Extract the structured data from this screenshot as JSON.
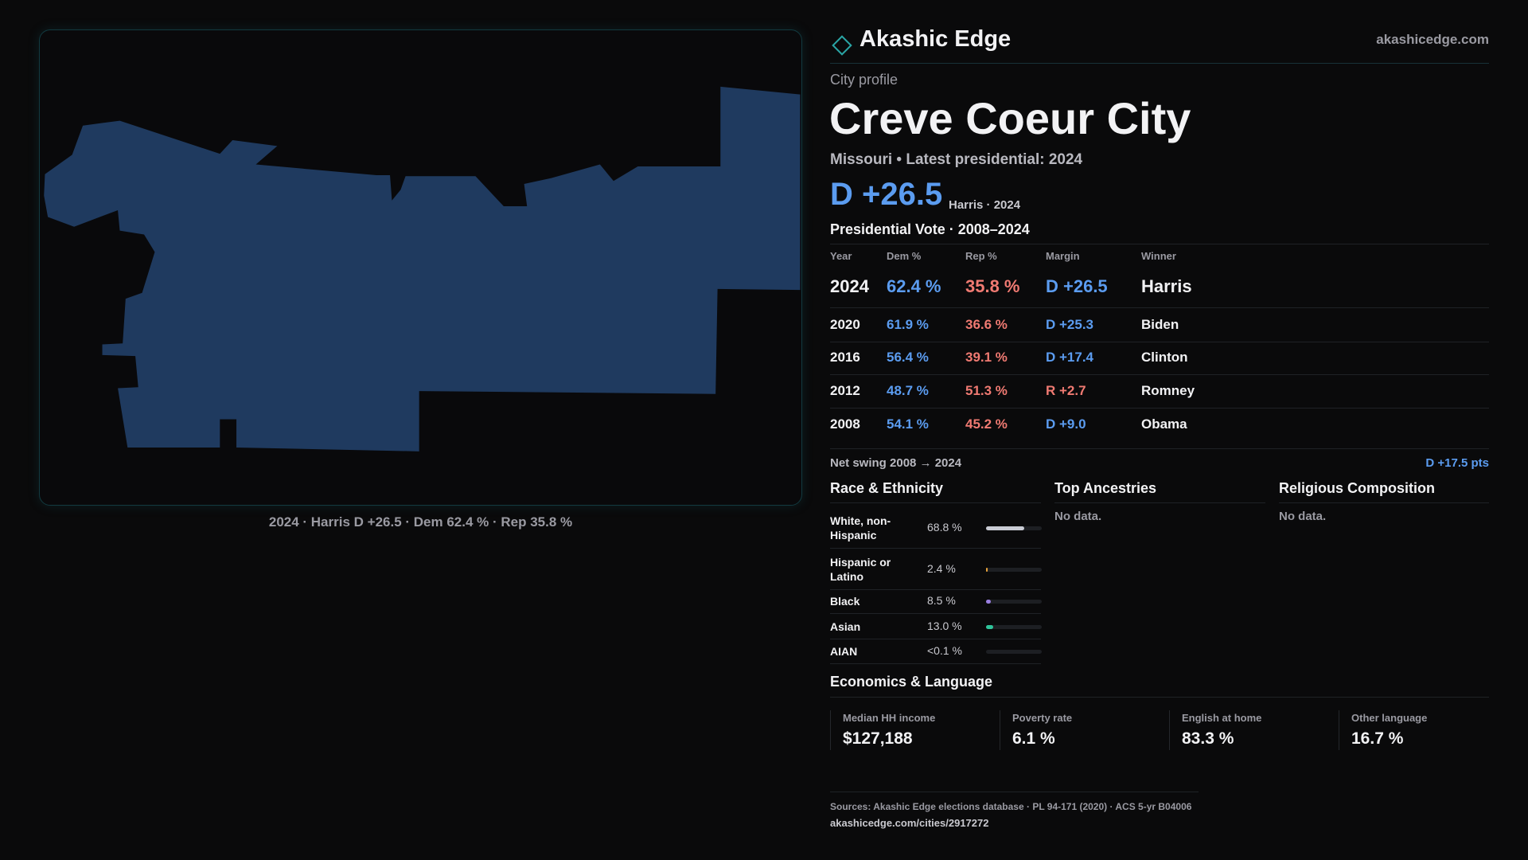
{
  "header": {
    "brand": "Akashic Edge",
    "domain": "akashicedge.com"
  },
  "map": {
    "caption": "2024 · Harris D +26.5 · Dem 62.4 % · Rep 35.8 %"
  },
  "profile": {
    "kicker": "City profile",
    "title": "Creve Coeur City",
    "subtitle": "Missouri • Latest presidential: 2024",
    "margin": "D +26.5",
    "margin_note": "Harris · 2024"
  },
  "vote_table": {
    "title": "Presidential Vote · 2008–2024",
    "columns": [
      "Year",
      "Dem %",
      "Rep %",
      "Margin",
      "Winner"
    ],
    "rows": [
      [
        "2024",
        "62.4 %",
        "35.8 %",
        "D +26.5",
        "Harris"
      ],
      [
        "2020",
        "61.9 %",
        "36.6 %",
        "D +25.3",
        "Biden"
      ],
      [
        "2016",
        "56.4 %",
        "39.1 %",
        "D +17.4",
        "Clinton"
      ],
      [
        "2012",
        "48.7 %",
        "51.3 %",
        "R +2.7",
        "Romney"
      ],
      [
        "2008",
        "54.1 %",
        "45.2 %",
        "D +9.0",
        "Obama"
      ]
    ]
  },
  "net_swing": {
    "label": "Net swing 2008 → 2024",
    "value": "D +17.5 pts"
  },
  "race": {
    "title": "Race & Ethnicity",
    "rows": [
      {
        "name": "White, non-Hispanic",
        "share": {
          "value": 68.8,
          "label": "68.8 %"
        },
        "color": "#c9ccd4"
      },
      {
        "name": "Hispanic or Latino",
        "share": {
          "value": 2.4,
          "label": "2.4 %"
        },
        "color": "#e8a33a"
      },
      {
        "name": "Black",
        "share": {
          "value": 8.5,
          "label": "8.5 %"
        },
        "color": "#9a7fe0"
      },
      {
        "name": "Asian",
        "share": {
          "value": 13.0,
          "label": "13.0 %"
        },
        "color": "#2fc49a"
      },
      {
        "name": "AIAN",
        "share": {
          "label": "<0.1 %"
        }
      }
    ]
  },
  "ancestries": {
    "title": "Top Ancestries",
    "empty": "No data."
  },
  "religion": {
    "title": "Religious Composition",
    "empty": "No data."
  },
  "economics": {
    "title": "Economics & Language",
    "stats": [
      {
        "label": "Median HH income",
        "value": "$127,188"
      },
      {
        "label": "Poverty rate",
        "value": "6.1 %"
      },
      {
        "label": "English at home",
        "value": "83.3 %"
      },
      {
        "label": "Other language",
        "value": "16.7 %"
      }
    ]
  },
  "footer": {
    "sources": "Sources: Akashic Edge elections database · PL 94-171 (2020) · ACS 5-yr B04006",
    "url": "akashicedge.com/cities/2917272"
  }
}
